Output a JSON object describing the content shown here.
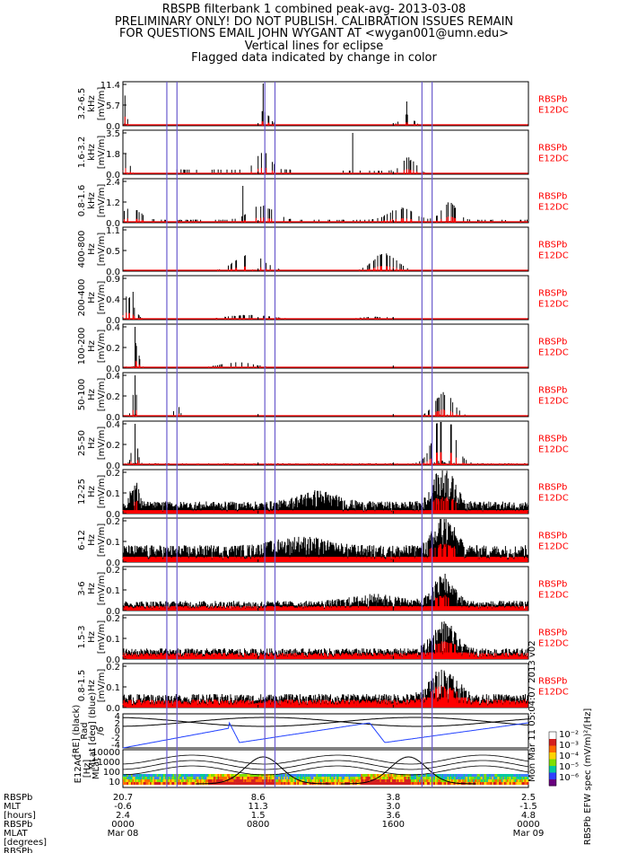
{
  "header": {
    "lines": [
      "RBSPB filterbank 1 combined peak-avg- 2013-03-08",
      "PRELIMINARY ONLY! DO NOT PUBLISH. CALIBRATION ISSUES REMAIN",
      "FOR QUESTIONS EMAIL JOHN WYGANT AT <wygan001@umn.edu>",
      "Vertical lines for eclipse",
      "Flagged data indicated by change in color"
    ]
  },
  "colors": {
    "peak": "#000000",
    "avg": "#ff0000",
    "eclipse": "#6a5acd",
    "mlat_trace": "#2040ff",
    "side_label": "#ff0000"
  },
  "eclipse_hours": [
    2.6,
    3.2,
    8.4,
    9.0,
    17.7,
    18.3
  ],
  "chart_data": {
    "type": "line",
    "x_range_hours": [
      0,
      24
    ],
    "panels": [
      {
        "ylabel": "3.2-6.5 kHz [mV/m]",
        "ylabel_lines": [
          "3.2-6.5",
          "kHz",
          "[mV/m]"
        ],
        "yticks": [
          "0.0",
          "5.7",
          "11.4"
        ],
        "ymax": 11.4,
        "side_label": [
          "RBSPb",
          "E12DC"
        ],
        "activity": "khz3"
      },
      {
        "ylabel": "1.6-3.2 kHz [mV/m]",
        "ylabel_lines": [
          "1.6-3.2",
          "kHz",
          "[mV/m]"
        ],
        "yticks": [
          "0.0",
          "1.8",
          "3.5"
        ],
        "ymax": 3.5,
        "side_label": [
          "RBSPb",
          "E12DC"
        ],
        "activity": "khz2"
      },
      {
        "ylabel": "0.8-1.6 kHz [mV/m]",
        "ylabel_lines": [
          "0.8-1.6",
          "kHz",
          "[mV/m]"
        ],
        "yticks": [
          "0.0",
          "1.2",
          "2.4"
        ],
        "ymax": 2.4,
        "side_label": [
          "RBSPb",
          "E12DC"
        ],
        "activity": "khz1"
      },
      {
        "ylabel": "400-800 Hz [mV/m]",
        "ylabel_lines": [
          "400-800",
          "Hz",
          "[mV/m]"
        ],
        "yticks": [
          "0.0",
          "0.5",
          "1.1"
        ],
        "ymax": 1.1,
        "side_label": [
          "RBSPb",
          "E12DC"
        ],
        "activity": "hz800"
      },
      {
        "ylabel": "200-400 Hz [mV/m]",
        "ylabel_lines": [
          "200-400",
          "Hz",
          "[mV/m]"
        ],
        "yticks": [
          "0.0",
          "0.4",
          "0.9"
        ],
        "ymax": 0.9,
        "side_label": [
          "RBSPb",
          "E12DC"
        ],
        "activity": "hz400"
      },
      {
        "ylabel": "100-200 Hz [mV/m]",
        "ylabel_lines": [
          "100-200",
          "Hz",
          "[mV/m]"
        ],
        "yticks": [
          "0.0",
          "0.2",
          "0.4"
        ],
        "ymax": 0.4,
        "side_label": [
          "RBSPb",
          "E12DC"
        ],
        "activity": "hz200"
      },
      {
        "ylabel": "50-100 Hz [mV/m]",
        "ylabel_lines": [
          "50-100",
          "Hz",
          "[mV/m]"
        ],
        "yticks": [
          "0.0",
          "0.2",
          "0.4"
        ],
        "ymax": 0.4,
        "side_label": [
          "RBSPb",
          "E12DC"
        ],
        "activity": "hz100"
      },
      {
        "ylabel": "25-50 Hz [mV/m]",
        "ylabel_lines": [
          "25-50",
          "Hz",
          "[mV/m]"
        ],
        "yticks": [
          "0.0",
          "0.2",
          "0.4"
        ],
        "ymax": 0.4,
        "side_label": [
          "RBSPb",
          "E12DC"
        ],
        "activity": "hz50"
      },
      {
        "ylabel": "12-25 Hz [mV/m]",
        "ylabel_lines": [
          "12-25",
          "Hz",
          "[mV/m]"
        ],
        "yticks": [
          "0.0",
          "0.1",
          "0.2"
        ],
        "ymax": 0.2,
        "side_label": [
          "RBSPb",
          "E12DC"
        ],
        "activity": "hz25"
      },
      {
        "ylabel": "6-12 Hz [mV/m]",
        "ylabel_lines": [
          "6-12",
          "Hz",
          "[mV/m]"
        ],
        "yticks": [
          "0.0",
          "0.1",
          "0.2"
        ],
        "ymax": 0.2,
        "side_label": [
          "RBSPb",
          "E12DC"
        ],
        "activity": "hz12"
      },
      {
        "ylabel": "3-6 Hz [mV/m]",
        "ylabel_lines": [
          "3-6",
          "Hz",
          "[mV/m]"
        ],
        "yticks": [
          "0.0",
          "0.1",
          "0.2"
        ],
        "ymax": 0.2,
        "side_label": [
          "RBSPb",
          "E12DC"
        ],
        "activity": "hz6"
      },
      {
        "ylabel": "1.5-3 Hz [mV/m]",
        "ylabel_lines": [
          "1.5-3",
          "Hz",
          "[mV/m]"
        ],
        "yticks": [
          "0.0",
          "0.1",
          "0.2"
        ],
        "ymax": 0.2,
        "side_label": [
          "RBSPb",
          "E12DC"
        ],
        "activity": "hz3"
      },
      {
        "ylabel": "0.8-1.5 Hz [mV/m]",
        "ylabel_lines": [
          "0.8-1.5",
          "Hz",
          "[mV/m]"
        ],
        "yticks": [
          "0.0",
          "0.1",
          "0.2"
        ],
        "ymax": 0.2,
        "side_label": [
          "RBSPb",
          "E12DC"
        ],
        "activity": "hz1"
      }
    ],
    "orbit_panel": {
      "ylabel_lines": [
        "[RE] (black)",
        "Rad",
        "MLat [deg] (blue)",
        "/6"
      ],
      "yticks": [
        "-4",
        "-2",
        "0",
        "2",
        "4"
      ]
    },
    "spec_panel": {
      "ylabel_lines": [
        "E12AC",
        "[Hz]",
        "MLat"
      ],
      "yticks": [
        "10",
        "100",
        "1000",
        "10000"
      ],
      "colorbar_ticks": [
        "10⁻²",
        "10⁻³",
        "10⁻⁴",
        "10⁻⁵",
        "10⁻⁶"
      ],
      "colorbar_label": "RBSPb EFW spec (mV/m)²/[Hz]",
      "credit": "Mon Mar 11 05:04:07 2013 v02"
    },
    "ephemeris": {
      "row_labels": [
        "RBSPb",
        "MLT",
        "[hours]",
        "RBSPb",
        "MLAT",
        "[degrees]",
        "RBSPb"
      ],
      "columns": [
        {
          "hour": 0,
          "values": [
            "20.7",
            "-0.6",
            "2.4",
            "0000",
            "Mar 08"
          ]
        },
        {
          "hour": 8,
          "values": [
            "8.6",
            "11.3",
            "1.5",
            "0800",
            ""
          ]
        },
        {
          "hour": 16,
          "values": [
            "3.8",
            "3.0",
            "3.6",
            "1600",
            ""
          ]
        },
        {
          "hour": 24,
          "values": [
            "2.5",
            "-1.5",
            "4.8",
            "0000",
            "Mar 09"
          ]
        }
      ]
    }
  }
}
